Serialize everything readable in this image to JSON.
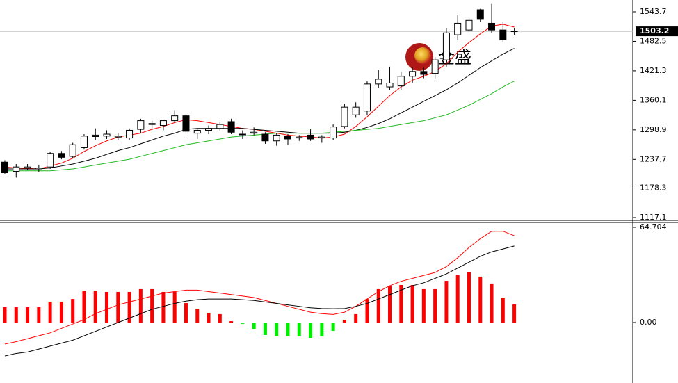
{
  "chart_data": [
    {
      "type": "candlestick",
      "ylim": [
        1111.3,
        1568.2
      ],
      "yticks": [
        1543.7,
        1482.5,
        1421.3,
        1360.1,
        1298.9,
        1237.7,
        1178.3,
        1117.1
      ],
      "current_price": 1503.2,
      "up_color": "#ffffff",
      "down_color": "#000000",
      "watermark": "金盛",
      "candles": [
        [
          1232,
          1236,
          1208,
          1210
        ],
        [
          1213,
          1228,
          1200,
          1222
        ],
        [
          1220,
          1228,
          1215,
          1222
        ],
        [
          1218,
          1226,
          1212,
          1220
        ],
        [
          1222,
          1254,
          1218,
          1250
        ],
        [
          1250,
          1255,
          1238,
          1242
        ],
        [
          1244,
          1272,
          1240,
          1268
        ],
        [
          1262,
          1290,
          1258,
          1286
        ],
        [
          1285,
          1302,
          1278,
          1288
        ],
        [
          1286,
          1298,
          1280,
          1290
        ],
        [
          1284,
          1292,
          1278,
          1286
        ],
        [
          1282,
          1302,
          1278,
          1298
        ],
        [
          1300,
          1322,
          1292,
          1318
        ],
        [
          1310,
          1318,
          1302,
          1312
        ],
        [
          1308,
          1320,
          1298,
          1318
        ],
        [
          1318,
          1340,
          1314,
          1328
        ],
        [
          1328,
          1334,
          1290,
          1296
        ],
        [
          1292,
          1300,
          1280,
          1298
        ],
        [
          1298,
          1308,
          1290,
          1302
        ],
        [
          1302,
          1316,
          1296,
          1310
        ],
        [
          1316,
          1322,
          1290,
          1294
        ],
        [
          1290,
          1298,
          1280,
          1290
        ],
        [
          1292,
          1304,
          1288,
          1294
        ],
        [
          1290,
          1294,
          1270,
          1276
        ],
        [
          1276,
          1292,
          1266,
          1288
        ],
        [
          1286,
          1290,
          1268,
          1280
        ],
        [
          1282,
          1288,
          1276,
          1284
        ],
        [
          1288,
          1300,
          1276,
          1280
        ],
        [
          1282,
          1288,
          1272,
          1284
        ],
        [
          1282,
          1310,
          1278,
          1305
        ],
        [
          1306,
          1352,
          1302,
          1346
        ],
        [
          1330,
          1356,
          1324,
          1346
        ],
        [
          1338,
          1400,
          1330,
          1394
        ],
        [
          1394,
          1424,
          1386,
          1404
        ],
        [
          1388,
          1430,
          1382,
          1396
        ],
        [
          1390,
          1420,
          1382,
          1410
        ],
        [
          1410,
          1428,
          1396,
          1420
        ],
        [
          1420,
          1428,
          1406,
          1414
        ],
        [
          1416,
          1450,
          1404,
          1444
        ],
        [
          1444,
          1510,
          1430,
          1500
        ],
        [
          1496,
          1538,
          1486,
          1520
        ],
        [
          1506,
          1530,
          1500,
          1526
        ],
        [
          1548,
          1550,
          1522,
          1528
        ],
        [
          1520,
          1560,
          1500,
          1506
        ],
        [
          1506,
          1522,
          1482,
          1486
        ],
        [
          1504,
          1510,
          1496,
          1503
        ]
      ],
      "lines": [
        {
          "color": "#ff0000",
          "values": [
            1222,
            1220,
            1219,
            1218,
            1224,
            1230,
            1240,
            1254,
            1266,
            1276,
            1284,
            1288,
            1292,
            1300,
            1306,
            1314,
            1320,
            1318,
            1314,
            1310,
            1306,
            1302,
            1300,
            1296,
            1292,
            1288,
            1286,
            1284,
            1282,
            1284,
            1290,
            1306,
            1326,
            1348,
            1370,
            1388,
            1402,
            1410,
            1420,
            1436,
            1460,
            1480,
            1498,
            1514,
            1518,
            1512
          ]
        },
        {
          "color": "#000000",
          "values": [
            1218,
            1218,
            1218,
            1218,
            1220,
            1224,
            1228,
            1234,
            1240,
            1248,
            1256,
            1262,
            1270,
            1278,
            1286,
            1292,
            1300,
            1302,
            1302,
            1302,
            1302,
            1302,
            1300,
            1298,
            1296,
            1294,
            1292,
            1292,
            1292,
            1292,
            1294,
            1298,
            1304,
            1312,
            1322,
            1334,
            1346,
            1358,
            1370,
            1382,
            1396,
            1412,
            1428,
            1442,
            1456,
            1468
          ]
        },
        {
          "color": "#22bb22",
          "values": [
            1214,
            1214,
            1214,
            1214,
            1214,
            1216,
            1218,
            1222,
            1226,
            1230,
            1234,
            1238,
            1244,
            1250,
            1256,
            1262,
            1268,
            1272,
            1276,
            1280,
            1284,
            1286,
            1288,
            1290,
            1292,
            1292,
            1292,
            1292,
            1292,
            1294,
            1296,
            1298,
            1300,
            1302,
            1306,
            1310,
            1314,
            1318,
            1324,
            1330,
            1340,
            1350,
            1362,
            1374,
            1388,
            1400
          ]
        }
      ]
    },
    {
      "type": "macd",
      "ylim": [
        -41.1,
        68.0
      ],
      "yticks": [
        64.704,
        {
          "value": 0,
          "label": "0.00"
        }
      ],
      "up_color": "#ff0000",
      "down_color": "#00ee00",
      "histogram": [
        10.4,
        10.4,
        10.4,
        10.4,
        14.2,
        14.2,
        16,
        21.7,
        21.7,
        20.8,
        20.8,
        20.8,
        22.7,
        22.7,
        20.8,
        20.8,
        13.2,
        9.4,
        6.6,
        5.7,
        0.9,
        -0.9,
        -4.7,
        -8.5,
        -9.4,
        -9.4,
        -9.4,
        -10.4,
        -9.4,
        -5.7,
        1.9,
        5.7,
        16,
        22.7,
        24.6,
        25.5,
        25.5,
        22.7,
        22.7,
        28.3,
        32.1,
        34,
        31.2,
        26.5,
        17,
        12.3
      ],
      "lines": [
        {
          "color": "#ff0000",
          "values": [
            -14.6,
            -13,
            -11,
            -9,
            -7,
            -4,
            -1,
            2,
            6,
            9,
            12,
            14,
            16,
            18,
            20,
            21,
            22,
            22,
            21,
            20,
            19,
            18,
            17,
            15,
            13,
            11,
            9,
            7,
            6,
            5.5,
            7,
            11,
            16,
            21,
            25,
            28,
            30,
            32,
            34,
            38,
            44,
            51,
            57,
            62,
            62,
            59
          ]
        },
        {
          "color": "#000000",
          "values": [
            -22.7,
            -21,
            -20,
            -18,
            -16,
            -14,
            -12,
            -9,
            -6,
            -3,
            0,
            3,
            6,
            9,
            11,
            13,
            14.5,
            15.5,
            16,
            16,
            16,
            15.5,
            15,
            14,
            13,
            12,
            11,
            10,
            9.5,
            9.4,
            9.5,
            11,
            13,
            16,
            19,
            22,
            25,
            27,
            30,
            33,
            37,
            41,
            45,
            48,
            50,
            52
          ]
        }
      ]
    }
  ]
}
